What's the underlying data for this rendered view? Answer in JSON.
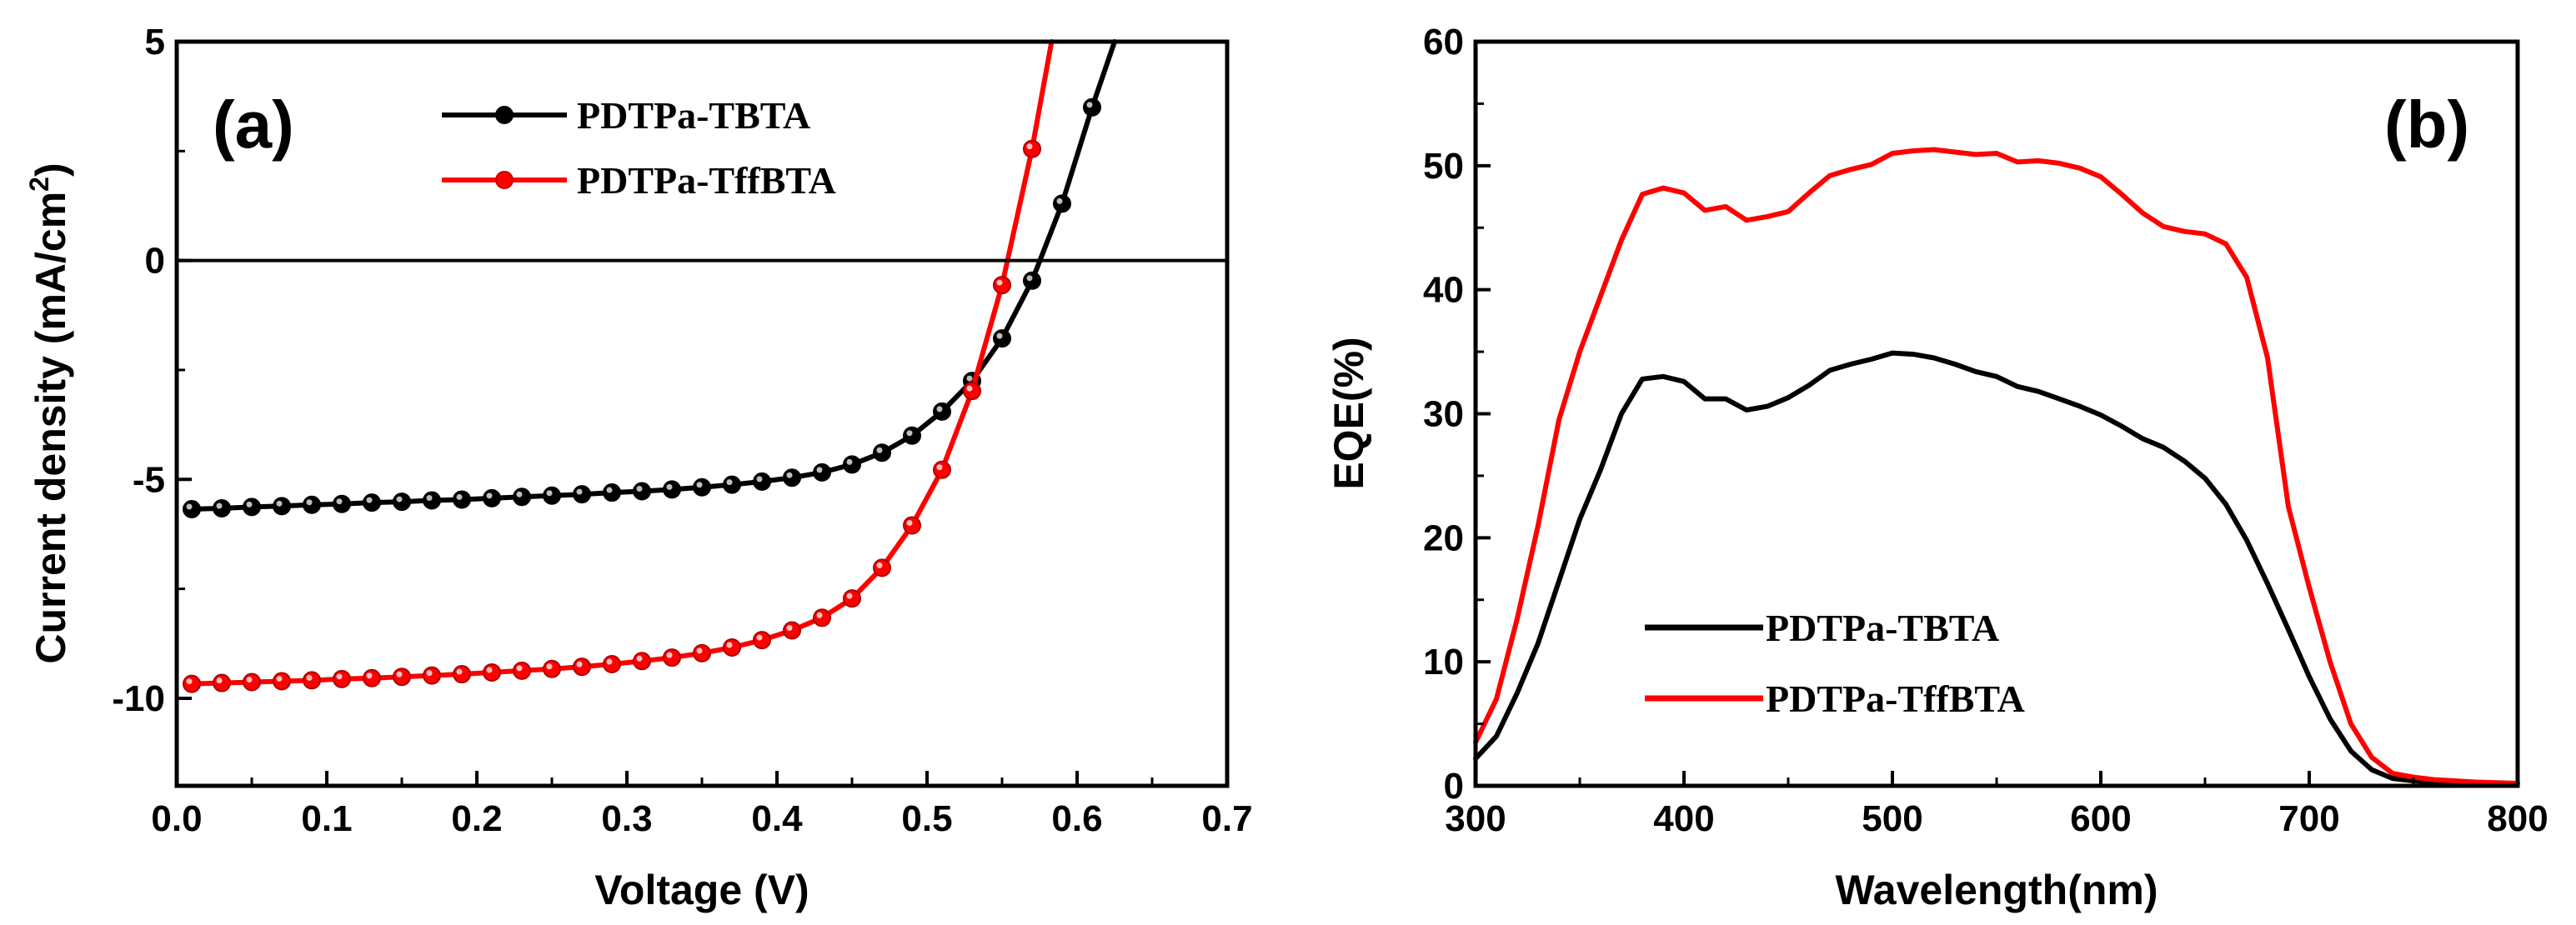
{
  "chart_data": [
    {
      "type": "line",
      "panel_label": "(a)",
      "title": "",
      "xlabel": "Voltage (V)",
      "ylabel_main": "Current density (mA/cm",
      "ylabel_sup": "2",
      "ylabel_end": ")",
      "xlim": [
        0.0,
        0.7
      ],
      "ylim": [
        -12,
        5
      ],
      "xticks": [
        0.0,
        0.1,
        0.2,
        0.3,
        0.4,
        0.5,
        0.6,
        0.7
      ],
      "xtick_labels": [
        "0.0",
        "0.1",
        "0.2",
        "0.3",
        "0.4",
        "0.5",
        "0.6",
        "0.7"
      ],
      "yticks": [
        -10,
        -5,
        0,
        5
      ],
      "ytick_labels": [
        "-10",
        "-5",
        "0",
        "5"
      ],
      "zero_line": true,
      "legend_position": "top-center",
      "series": [
        {
          "name": "PDTPa-TBTA",
          "color": "#000000",
          "markers": true,
          "points": [
            [
              0.01,
              -5.68
            ],
            [
              0.03,
              -5.66
            ],
            [
              0.05,
              -5.63
            ],
            [
              0.07,
              -5.61
            ],
            [
              0.09,
              -5.58
            ],
            [
              0.11,
              -5.56
            ],
            [
              0.13,
              -5.53
            ],
            [
              0.15,
              -5.51
            ],
            [
              0.17,
              -5.48
            ],
            [
              0.19,
              -5.46
            ],
            [
              0.21,
              -5.43
            ],
            [
              0.23,
              -5.4
            ],
            [
              0.25,
              -5.37
            ],
            [
              0.27,
              -5.34
            ],
            [
              0.29,
              -5.3
            ],
            [
              0.31,
              -5.27
            ],
            [
              0.33,
              -5.23
            ],
            [
              0.35,
              -5.18
            ],
            [
              0.37,
              -5.12
            ],
            [
              0.39,
              -5.05
            ],
            [
              0.41,
              -4.96
            ],
            [
              0.43,
              -4.84
            ],
            [
              0.45,
              -4.66
            ],
            [
              0.47,
              -4.39
            ],
            [
              0.49,
              -4.0
            ],
            [
              0.51,
              -3.45
            ],
            [
              0.53,
              -2.75
            ],
            [
              0.55,
              -1.78
            ],
            [
              0.57,
              -0.46
            ],
            [
              0.59,
              1.3
            ],
            [
              0.61,
              3.5
            ],
            [
              0.625,
              5.0
            ]
          ]
        },
        {
          "name": "PDTPa-TffBTA",
          "color": "#ff0000",
          "markers": true,
          "points": [
            [
              0.01,
              -9.67
            ],
            [
              0.03,
              -9.65
            ],
            [
              0.05,
              -9.63
            ],
            [
              0.07,
              -9.61
            ],
            [
              0.09,
              -9.59
            ],
            [
              0.11,
              -9.56
            ],
            [
              0.13,
              -9.54
            ],
            [
              0.15,
              -9.51
            ],
            [
              0.17,
              -9.48
            ],
            [
              0.19,
              -9.45
            ],
            [
              0.21,
              -9.41
            ],
            [
              0.23,
              -9.37
            ],
            [
              0.25,
              -9.33
            ],
            [
              0.27,
              -9.28
            ],
            [
              0.29,
              -9.22
            ],
            [
              0.31,
              -9.15
            ],
            [
              0.33,
              -9.07
            ],
            [
              0.35,
              -8.97
            ],
            [
              0.37,
              -8.84
            ],
            [
              0.39,
              -8.67
            ],
            [
              0.41,
              -8.45
            ],
            [
              0.43,
              -8.16
            ],
            [
              0.45,
              -7.72
            ],
            [
              0.47,
              -7.02
            ],
            [
              0.49,
              -6.05
            ],
            [
              0.51,
              -4.78
            ],
            [
              0.53,
              -2.98
            ],
            [
              0.55,
              -0.56
            ],
            [
              0.57,
              2.55
            ],
            [
              0.583,
              5.0
            ]
          ]
        }
      ]
    },
    {
      "type": "line",
      "panel_label": "(b)",
      "title": "",
      "xlabel": "Wavelength(nm)",
      "ylabel": "EQE(%)",
      "xlim": [
        300,
        800
      ],
      "ylim": [
        0,
        60
      ],
      "xticks": [
        300,
        400,
        500,
        600,
        700,
        800
      ],
      "xtick_labels": [
        "300",
        "400",
        "500",
        "600",
        "700",
        "800"
      ],
      "yticks": [
        0,
        10,
        20,
        30,
        40,
        50,
        60
      ],
      "ytick_labels": [
        "0",
        "10",
        "20",
        "30",
        "40",
        "50",
        "60"
      ],
      "legend_position": "bottom-center",
      "series": [
        {
          "name": "PDTPa-TBTA",
          "color": "#000000",
          "markers": false,
          "points": [
            [
              300,
              2.2
            ],
            [
              310,
              4.0
            ],
            [
              320,
              7.5
            ],
            [
              330,
              11.5
            ],
            [
              340,
              16.5
            ],
            [
              350,
              21.5
            ],
            [
              360,
              25.5
            ],
            [
              370,
              30.0
            ],
            [
              380,
              32.8
            ],
            [
              390,
              33.0
            ],
            [
              400,
              32.6
            ],
            [
              410,
              31.2
            ],
            [
              420,
              31.2
            ],
            [
              430,
              30.3
            ],
            [
              440,
              30.6
            ],
            [
              450,
              31.3
            ],
            [
              460,
              32.3
            ],
            [
              470,
              33.5
            ],
            [
              480,
              34.0
            ],
            [
              490,
              34.4
            ],
            [
              500,
              34.9
            ],
            [
              510,
              34.8
            ],
            [
              520,
              34.5
            ],
            [
              530,
              34.0
            ],
            [
              540,
              33.4
            ],
            [
              550,
              33.0
            ],
            [
              560,
              32.2
            ],
            [
              570,
              31.8
            ],
            [
              580,
              31.2
            ],
            [
              590,
              30.6
            ],
            [
              600,
              29.9
            ],
            [
              610,
              29.0
            ],
            [
              620,
              28.0
            ],
            [
              630,
              27.3
            ],
            [
              640,
              26.2
            ],
            [
              650,
              24.8
            ],
            [
              660,
              22.7
            ],
            [
              670,
              19.8
            ],
            [
              680,
              16.3
            ],
            [
              690,
              12.6
            ],
            [
              700,
              8.8
            ],
            [
              710,
              5.4
            ],
            [
              720,
              2.8
            ],
            [
              730,
              1.3
            ],
            [
              740,
              0.6
            ],
            [
              750,
              0.4
            ],
            [
              760,
              0.3
            ],
            [
              780,
              0.2
            ],
            [
              800,
              0.2
            ]
          ]
        },
        {
          "name": "PDTPa-TffBTA",
          "color": "#ff0000",
          "markers": false,
          "points": [
            [
              300,
              3.5
            ],
            [
              310,
              7.0
            ],
            [
              320,
              13.5
            ],
            [
              330,
              21.0
            ],
            [
              340,
              29.5
            ],
            [
              350,
              35.0
            ],
            [
              360,
              39.5
            ],
            [
              370,
              44.0
            ],
            [
              380,
              47.7
            ],
            [
              390,
              48.2
            ],
            [
              400,
              47.8
            ],
            [
              410,
              46.4
            ],
            [
              420,
              46.7
            ],
            [
              430,
              45.6
            ],
            [
              440,
              45.9
            ],
            [
              450,
              46.3
            ],
            [
              460,
              47.8
            ],
            [
              470,
              49.2
            ],
            [
              480,
              49.7
            ],
            [
              490,
              50.1
            ],
            [
              500,
              51.0
            ],
            [
              510,
              51.2
            ],
            [
              520,
              51.3
            ],
            [
              530,
              51.1
            ],
            [
              540,
              50.9
            ],
            [
              550,
              51.0
            ],
            [
              560,
              50.3
            ],
            [
              570,
              50.4
            ],
            [
              580,
              50.2
            ],
            [
              590,
              49.8
            ],
            [
              600,
              49.1
            ],
            [
              610,
              47.7
            ],
            [
              620,
              46.2
            ],
            [
              630,
              45.1
            ],
            [
              640,
              44.7
            ],
            [
              650,
              44.5
            ],
            [
              660,
              43.7
            ],
            [
              670,
              41.0
            ],
            [
              680,
              34.5
            ],
            [
              690,
              22.5
            ],
            [
              700,
              16.0
            ],
            [
              710,
              10.0
            ],
            [
              720,
              5.0
            ],
            [
              730,
              2.3
            ],
            [
              740,
              1.0
            ],
            [
              750,
              0.7
            ],
            [
              760,
              0.5
            ],
            [
              780,
              0.3
            ],
            [
              800,
              0.2
            ]
          ]
        }
      ]
    }
  ]
}
